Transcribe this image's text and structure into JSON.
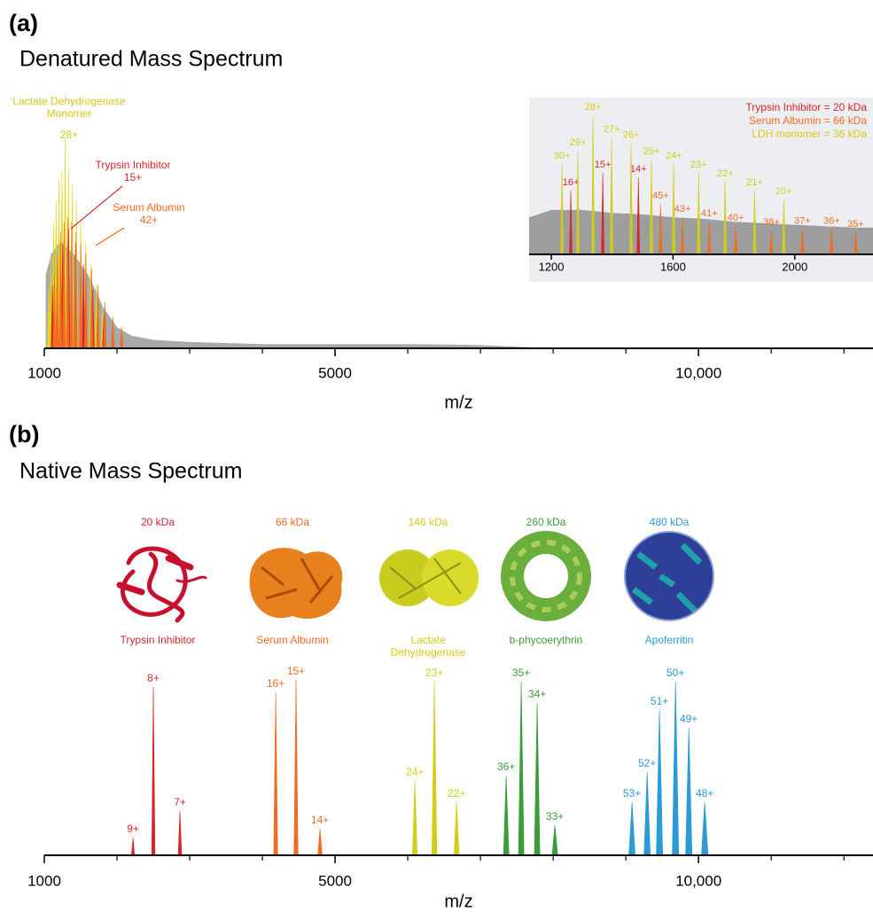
{
  "chart_data": [
    {
      "type": "spectrum",
      "panel_label": "(a)",
      "title": "Denatured Mass Spectrum",
      "x_label": "m/z",
      "xlim": [
        1000,
        12400
      ],
      "ylim": [
        0,
        100
      ],
      "xticks": [
        1000,
        5000,
        {
          "value": 10000,
          "label": "10,000"
        }
      ],
      "xminor_ticks": [
        2000,
        3000,
        4000,
        6000,
        7000,
        8000,
        9000,
        11000,
        12000
      ],
      "annotations": [
        {
          "text": "Lactate Dehydrogenase Monomer",
          "charge": "28+",
          "color": "#d4c81a"
        },
        {
          "text": "Trypsin Inhibitor",
          "charge": "15+",
          "color": "#d7262b"
        },
        {
          "text": "Serum Albumin",
          "charge": "42+",
          "color": "#f26b21"
        }
      ],
      "series": [
        {
          "color": "#9a9a9a",
          "style": "area",
          "x": [
            1020,
            1100,
            1200,
            1300,
            1400,
            1500,
            1600,
            1700,
            1800,
            1900,
            2000,
            2200,
            2500,
            3000,
            4000,
            5000,
            6000,
            7000,
            8000
          ],
          "values": [
            35,
            45,
            50,
            48,
            45,
            40,
            35,
            28,
            20,
            15,
            10,
            6,
            4,
            3,
            2,
            2,
            2,
            1.5,
            0
          ]
        },
        {
          "color": "#e0d81c",
          "x": [
            1059.8,
            1091.9,
            1126,
            1162.3,
            1201,
            1242.4,
            1286.7,
            1334.3,
            1385.6,
            1441,
            1501,
            1566.2,
            1637.4,
            1715.3,
            1801
          ],
          "values": [
            30,
            45,
            60,
            70,
            80,
            85,
            100,
            85,
            78,
            70,
            60,
            50,
            40,
            30,
            20
          ]
        },
        {
          "color": "#d7262b",
          "x": [
            1112,
            1177.5,
            1251,
            1334.3,
            1429.6,
            1539.5,
            1667.7,
            1819.2
          ],
          "values": [
            30,
            40,
            50,
            57,
            50,
            40,
            28,
            15
          ]
        },
        {
          "color": "#f26b21",
          "x": [
            1138.9,
            1179.6,
            1223.2,
            1270.2,
            1321,
            1376,
            1435.8,
            1501,
            1572.4,
            1651,
            1737.8,
            1834.3,
            1942.2,
            2063.5
          ],
          "values": [
            35,
            45,
            55,
            60,
            62,
            60,
            55,
            50,
            45,
            38,
            30,
            22,
            15,
            10
          ]
        }
      ]
    },
    {
      "type": "spectrum",
      "xlim": [
        1127,
        2257
      ],
      "ylim": [
        0,
        100
      ],
      "xticks": [
        1200,
        1600,
        2000
      ],
      "series": [
        {
          "color": "#8f8f8f",
          "style": "area",
          "x": [
            1127,
            1200,
            1300,
            1400,
            1500,
            1600,
            1700,
            1800,
            1900,
            2000,
            2100,
            2200,
            2257
          ],
          "values": [
            25,
            30,
            30,
            28,
            27,
            25,
            24,
            22,
            21,
            20,
            19,
            18,
            18
          ]
        },
        {
          "name": "Trypsin Inhibitor = 20 kDa",
          "color": "#d7262b",
          "x": [
            1264,
            1369,
            1486
          ],
          "values": [
            43,
            55,
            52
          ],
          "labels": [
            "16+",
            "15+",
            "14+"
          ]
        },
        {
          "name": "Serum Albumin = 66 kDa",
          "color": "#f26b21",
          "x": [
            1559,
            1631,
            1719,
            1806,
            1923,
            2025,
            2121,
            2200
          ],
          "values": [
            34,
            25,
            22,
            19,
            16,
            17,
            17,
            15
          ],
          "labels": [
            "45+",
            "43+",
            "41+",
            "40+",
            "38+",
            "37+",
            "36+",
            "35+"
          ]
        },
        {
          "name": "LDH monomer = 36 kDa",
          "color": "#d4cc1a",
          "x": [
            1235,
            1287,
            1337,
            1398,
            1462,
            1529,
            1602,
            1684,
            1771,
            1868,
            1964
          ],
          "values": [
            61,
            70,
            94,
            79,
            75,
            64,
            61,
            55,
            49,
            43,
            37
          ],
          "labels": [
            "30+",
            "29+",
            "28+",
            "27+",
            "26+",
            "25+",
            "24+",
            "23+",
            "22+",
            "21+",
            "20+"
          ]
        }
      ]
    },
    {
      "type": "spectrum",
      "panel_label": "(b)",
      "title": "Native Mass Spectrum",
      "x_label": "m/z",
      "xlim": [
        1000,
        12400
      ],
      "ylim": [
        0,
        100
      ],
      "xticks": [
        1000,
        5000,
        {
          "value": 10000,
          "label": "10,000"
        }
      ],
      "xminor_ticks": [
        2000,
        3000,
        4000,
        6000,
        7000,
        8000,
        9000,
        11000,
        12000
      ],
      "series": [
        {
          "name": "Trypsin Inhibitor",
          "mass": "20 kDa",
          "color": "#d7262b",
          "x": [
            2220,
            2500,
            2866
          ],
          "values": [
            10,
            95,
            25
          ],
          "labels": [
            "9+",
            "8+",
            "7+"
          ]
        },
        {
          "name": "Serum Albumin",
          "mass": "66 kDa",
          "color": "#f26b21",
          "x": [
            4183,
            4463,
            4793
          ],
          "values": [
            92,
            99,
            15
          ],
          "labels": [
            "16+",
            "15+",
            "14+"
          ]
        },
        {
          "name": "Lactate Dehydrogenase",
          "mass": "146 kDa",
          "color": "#d4cc1a",
          "x": [
            6098,
            6366,
            6671
          ],
          "values": [
            42,
            98,
            30
          ],
          "labels": [
            "24+",
            "23+",
            "22+"
          ]
        },
        {
          "name": "b-phycoerythrin",
          "mass": "260 kDa",
          "color": "#3a9d3a",
          "x": [
            7354,
            7561,
            7780,
            8024
          ],
          "values": [
            45,
            98,
            86,
            17
          ],
          "labels": [
            "36+",
            "35+",
            "34+",
            "33+"
          ]
        },
        {
          "name": "Apoferritin",
          "mass": "480 kDa",
          "color": "#2a9bd6",
          "x": [
            9085,
            9293,
            9463,
            9683,
            9866,
            10085
          ],
          "values": [
            30,
            47,
            82,
            98,
            72,
            30
          ],
          "labels": [
            "53+",
            "52+",
            "51+",
            "50+",
            "49+",
            "48+"
          ]
        }
      ]
    }
  ]
}
